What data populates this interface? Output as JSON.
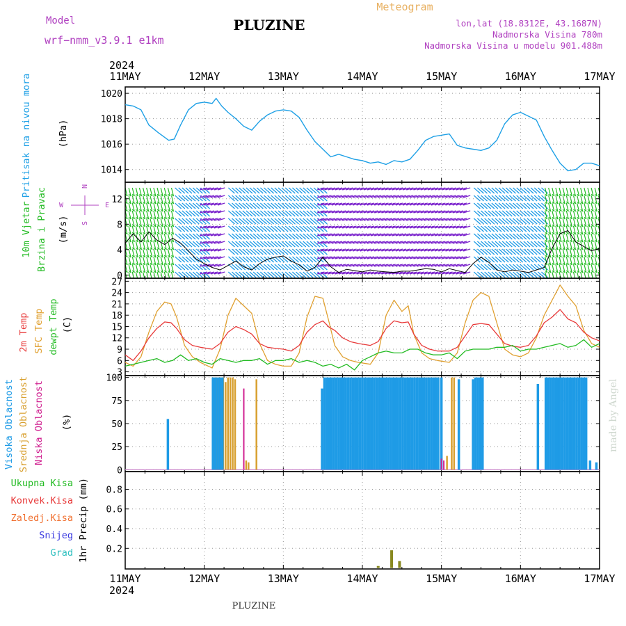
{
  "header": {
    "model_label": "Model",
    "model_name": "wrf−nmm_v3.9.1  e1km",
    "title": "PLUZINE",
    "meteogram_label": "Meteogram",
    "lonlat": "lon,lat (18.8312E, 43.1687N)",
    "altitude": "Nadmorska Visina 780m",
    "model_altitude": "Nadmorska Visina u modelu 901.488m",
    "credit": "made by Angel",
    "footer_title": "PLUZINE"
  },
  "colors": {
    "pressure": "#1ea0e6",
    "wind_speed": "#000000",
    "temp2m": "#e83b3b",
    "sfc_temp": "#e0a030",
    "dewpoint": "#22bb22",
    "high_cloud": "#1e9be6",
    "mid_cloud": "#d8a030",
    "low_cloud": "#d02090",
    "total_precip": "#22bb22",
    "convective_precip": "#e83b3b",
    "freezing_precip": "#f07030",
    "snow": "#3a3ae0",
    "hail": "#30c0c0",
    "model_label": "#b040c0",
    "meteogram_label": "#e8b060",
    "info_text": "#b040c0",
    "wind_barbs": [
      "#22bb22",
      "#1e9be6",
      "#7a22cc",
      "#e0c020"
    ]
  },
  "time_axis": {
    "year": "2024",
    "day_labels": [
      "11MAY",
      "12MAY",
      "13MAY",
      "14MAY",
      "15MAY",
      "16MAY",
      "17MAY"
    ],
    "start_day": 11,
    "end_day": 17
  },
  "chart_data": [
    {
      "type": "line",
      "panel": "pressure",
      "ylabel_1": "Pritisak na nivou mora",
      "ylabel_2": "(hPa)",
      "ylim": [
        1013,
        1020.5
      ],
      "yticks": [
        1014,
        1016,
        1018,
        1020
      ],
      "grid": true,
      "series": [
        {
          "values_x": [
            11.0,
            11.1,
            11.2,
            11.3,
            11.42,
            11.55,
            11.62,
            11.7,
            11.8,
            11.9,
            12.0,
            12.1,
            12.15,
            12.22,
            12.3,
            12.4,
            12.5,
            12.6,
            12.7,
            12.8,
            12.9,
            13.0,
            13.1,
            13.2,
            13.3,
            13.4,
            13.5,
            13.6,
            13.7,
            13.8,
            13.9,
            14.0,
            14.1,
            14.2,
            14.3,
            14.4,
            14.5,
            14.6,
            14.7,
            14.8,
            14.9,
            15.0,
            15.1,
            15.2,
            15.3,
            15.4,
            15.5,
            15.6,
            15.7,
            15.8,
            15.9,
            16.0,
            16.1,
            16.2,
            16.3,
            16.4,
            16.5,
            16.6,
            16.7,
            16.8,
            16.9,
            17.0
          ],
          "values": [
            1019.1,
            1019.0,
            1018.7,
            1017.5,
            1016.9,
            1016.3,
            1016.4,
            1017.5,
            1018.7,
            1019.2,
            1019.3,
            1019.2,
            1019.6,
            1019.0,
            1018.5,
            1018.0,
            1017.4,
            1017.1,
            1017.8,
            1018.3,
            1018.6,
            1018.7,
            1018.6,
            1018.1,
            1017.1,
            1016.2,
            1015.6,
            1015.0,
            1015.2,
            1015.0,
            1014.8,
            1014.7,
            1014.5,
            1014.6,
            1014.4,
            1014.7,
            1014.6,
            1014.8,
            1015.5,
            1016.3,
            1016.6,
            1016.7,
            1016.8,
            1015.9,
            1015.7,
            1015.6,
            1015.5,
            1015.7,
            1016.3,
            1017.6,
            1018.3,
            1018.5,
            1018.2,
            1017.9,
            1016.6,
            1015.5,
            1014.5,
            1013.9,
            1014.0,
            1014.5,
            1014.5,
            1014.3
          ]
        }
      ]
    },
    {
      "type": "line",
      "panel": "wind",
      "ylabel_1": "10m Vjetar",
      "ylabel_2": "Brzina i Pravac",
      "ylabel_3": "(m/s)",
      "ylim": [
        -0.5,
        14.6
      ],
      "yticks": [
        0,
        4,
        8,
        12
      ],
      "grid": true,
      "compass_n": "N",
      "compass_w": "W",
      "compass_e": "E",
      "compass_s": "S",
      "series": [
        {
          "name": "wind speed",
          "values_x": [
            11.0,
            11.1,
            11.2,
            11.3,
            11.4,
            11.5,
            11.6,
            11.7,
            11.8,
            11.9,
            12.0,
            12.1,
            12.2,
            12.3,
            12.4,
            12.5,
            12.6,
            12.7,
            12.8,
            12.9,
            13.0,
            13.1,
            13.2,
            13.3,
            13.4,
            13.5,
            13.6,
            13.7,
            13.8,
            13.9,
            14.0,
            14.1,
            14.2,
            14.3,
            14.4,
            14.5,
            14.6,
            14.7,
            14.8,
            14.9,
            15.0,
            15.1,
            15.2,
            15.3,
            15.4,
            15.5,
            15.6,
            15.7,
            15.8,
            15.9,
            16.0,
            16.1,
            16.2,
            16.3,
            16.4,
            16.5,
            16.6,
            16.7,
            16.8,
            16.9,
            17.0
          ],
          "values": [
            5.0,
            6.5,
            5.2,
            6.8,
            5.5,
            4.8,
            5.8,
            5.0,
            3.8,
            2.5,
            1.8,
            1.2,
            0.8,
            1.5,
            2.2,
            1.3,
            0.8,
            1.8,
            2.5,
            2.8,
            3.0,
            2.2,
            1.6,
            0.6,
            1.2,
            2.8,
            1.3,
            0.4,
            0.9,
            0.7,
            0.5,
            0.8,
            0.6,
            0.5,
            0.4,
            0.6,
            0.6,
            0.8,
            1.0,
            0.9,
            0.5,
            1.0,
            0.7,
            0.4,
            1.8,
            2.8,
            2.0,
            0.8,
            0.5,
            0.8,
            0.6,
            0.4,
            0.8,
            1.2,
            4.2,
            6.5,
            7.0,
            5.2,
            4.5,
            3.8,
            4.2
          ]
        }
      ]
    },
    {
      "type": "line",
      "panel": "temperature",
      "ylabel_1": "2m Temp",
      "ylabel_2": "SFC Temp",
      "ylabel_3": "dewpt Temp",
      "ylabel_4": "(C)",
      "ylim": [
        2,
        27.8
      ],
      "yticks": [
        3,
        6,
        9,
        12,
        15,
        18,
        21,
        24,
        27
      ],
      "grid": true,
      "series": [
        {
          "name": "2m Temp",
          "values_x": [
            11.0,
            11.1,
            11.2,
            11.3,
            11.4,
            11.5,
            11.58,
            11.65,
            11.75,
            11.85,
            11.95,
            12.1,
            12.2,
            12.3,
            12.4,
            12.5,
            12.6,
            12.7,
            12.8,
            12.9,
            13.0,
            13.1,
            13.2,
            13.3,
            13.4,
            13.5,
            13.58,
            13.65,
            13.75,
            13.85,
            13.95,
            14.1,
            14.2,
            14.3,
            14.4,
            14.5,
            14.58,
            14.65,
            14.75,
            14.85,
            14.95,
            15.1,
            15.2,
            15.3,
            15.4,
            15.5,
            15.6,
            15.7,
            15.8,
            15.9,
            16.0,
            16.1,
            16.2,
            16.3,
            16.4,
            16.5,
            16.6,
            16.7,
            16.8,
            16.9,
            17.0
          ],
          "values": [
            7.5,
            6.0,
            8.5,
            12.0,
            14.5,
            16.2,
            16.0,
            14.5,
            11.5,
            10.0,
            9.5,
            9.0,
            10.5,
            13.5,
            15.0,
            14.2,
            13.0,
            10.5,
            9.5,
            9.2,
            9.0,
            8.5,
            10.0,
            13.5,
            15.5,
            16.5,
            14.8,
            14.0,
            12.0,
            11.0,
            10.5,
            10.0,
            11.0,
            14.5,
            16.5,
            16.0,
            16.2,
            13.0,
            10.0,
            9.0,
            8.5,
            8.5,
            9.5,
            12.5,
            15.5,
            15.8,
            15.5,
            13.0,
            10.5,
            9.8,
            9.5,
            10.0,
            12.5,
            16.0,
            17.5,
            19.5,
            17.0,
            16.0,
            13.5,
            12.0,
            11.2
          ]
        },
        {
          "name": "SFC Temp",
          "values_x": [
            11.0,
            11.1,
            11.2,
            11.3,
            11.4,
            11.5,
            11.58,
            11.65,
            11.75,
            11.85,
            11.95,
            12.1,
            12.2,
            12.3,
            12.4,
            12.5,
            12.6,
            12.7,
            12.8,
            12.9,
            13.0,
            13.1,
            13.2,
            13.3,
            13.4,
            13.5,
            13.58,
            13.65,
            13.75,
            13.85,
            13.95,
            14.1,
            14.2,
            14.3,
            14.4,
            14.5,
            14.58,
            14.65,
            14.75,
            14.85,
            14.95,
            15.1,
            15.2,
            15.3,
            15.4,
            15.5,
            15.6,
            15.7,
            15.8,
            15.9,
            16.0,
            16.1,
            16.2,
            16.3,
            16.4,
            16.5,
            16.6,
            16.7,
            16.8,
            16.9,
            17.0
          ],
          "values": [
            5.5,
            4.5,
            7.0,
            13.5,
            19.0,
            21.5,
            21.0,
            17.5,
            10.0,
            7.0,
            5.5,
            4.0,
            9.0,
            18.0,
            22.5,
            20.5,
            18.5,
            10.5,
            6.0,
            5.0,
            4.5,
            4.5,
            8.0,
            17.5,
            23.0,
            22.5,
            16.0,
            10.0,
            7.0,
            6.0,
            5.5,
            5.0,
            8.0,
            18.0,
            22.0,
            19.0,
            20.5,
            13.0,
            8.0,
            6.5,
            6.0,
            5.5,
            8.0,
            16.0,
            22.0,
            24.0,
            23.0,
            16.0,
            9.0,
            7.5,
            7.0,
            8.0,
            12.0,
            18.0,
            22.0,
            26.0,
            23.0,
            20.5,
            14.0,
            10.5,
            9.5
          ]
        },
        {
          "name": "dewpt Temp",
          "values_x": [
            11.0,
            11.1,
            11.2,
            11.3,
            11.4,
            11.5,
            11.6,
            11.7,
            11.8,
            11.9,
            12.0,
            12.1,
            12.2,
            12.3,
            12.4,
            12.5,
            12.6,
            12.7,
            12.8,
            12.9,
            13.0,
            13.1,
            13.2,
            13.3,
            13.4,
            13.5,
            13.6,
            13.7,
            13.8,
            13.9,
            14.0,
            14.1,
            14.2,
            14.3,
            14.4,
            14.5,
            14.6,
            14.7,
            14.8,
            14.9,
            15.0,
            15.1,
            15.2,
            15.3,
            15.4,
            15.5,
            15.6,
            15.7,
            15.8,
            15.9,
            16.0,
            16.1,
            16.2,
            16.3,
            16.4,
            16.5,
            16.6,
            16.7,
            16.8,
            16.9,
            17.0
          ],
          "values": [
            4.5,
            5.0,
            5.5,
            6.0,
            6.5,
            5.5,
            6.0,
            7.5,
            6.0,
            6.5,
            5.5,
            5.0,
            6.5,
            6.0,
            5.5,
            6.0,
            6.0,
            6.5,
            5.0,
            6.0,
            6.0,
            6.5,
            5.5,
            6.0,
            5.5,
            4.5,
            5.0,
            4.0,
            5.0,
            3.5,
            6.0,
            7.0,
            8.0,
            8.5,
            8.0,
            8.0,
            9.0,
            9.0,
            8.0,
            7.5,
            7.5,
            8.0,
            6.5,
            8.5,
            9.0,
            9.0,
            9.0,
            9.5,
            9.5,
            10.0,
            8.5,
            9.0,
            9.0,
            9.5,
            10.0,
            10.5,
            9.5,
            10.0,
            11.5,
            9.5,
            10.5
          ]
        }
      ]
    },
    {
      "type": "bar",
      "panel": "cloudiness",
      "ylabel_1": "Visoka Oblacnost",
      "ylabel_2": "Srednja Oblacnost",
      "ylabel_3": "Niska Oblacnost",
      "ylabel_4": "(%)",
      "ylim": [
        -2,
        102
      ],
      "yticks": [
        0,
        25,
        50,
        75,
        100
      ],
      "grid": true,
      "series": [
        {
          "name": "Visoka Oblacnost",
          "x": [
            11.54,
            12.11,
            12.14,
            12.17,
            12.2,
            12.23,
            13.49,
            13.52,
            13.55,
            13.58,
            13.61,
            13.64,
            13.67,
            13.7,
            13.73,
            13.76,
            13.79,
            13.82,
            13.85,
            13.88,
            13.91,
            13.94,
            13.97,
            14.0,
            14.03,
            14.06,
            14.09,
            14.12,
            14.15,
            14.18,
            14.21,
            14.24,
            14.27,
            14.3,
            14.33,
            14.36,
            14.39,
            14.42,
            14.45,
            14.48,
            14.51,
            14.54,
            14.57,
            14.6,
            14.63,
            14.66,
            14.69,
            14.72,
            14.75,
            14.78,
            14.81,
            14.84,
            14.87,
            14.9,
            14.93,
            14.96,
            15.0,
            15.22,
            15.4,
            15.43,
            15.46,
            15.49,
            15.52,
            16.22,
            16.32,
            16.35,
            16.38,
            16.41,
            16.44,
            16.47,
            16.5,
            16.53,
            16.56,
            16.59,
            16.62,
            16.65,
            16.68,
            16.71,
            16.74,
            16.77,
            16.8,
            16.83,
            16.88,
            16.96
          ],
          "values": [
            55,
            100,
            100,
            100,
            100,
            100,
            88,
            100,
            100,
            100,
            100,
            100,
            100,
            100,
            100,
            100,
            100,
            100,
            100,
            100,
            100,
            100,
            100,
            100,
            100,
            100,
            100,
            100,
            100,
            100,
            100,
            100,
            100,
            100,
            100,
            100,
            100,
            100,
            100,
            100,
            100,
            100,
            100,
            100,
            100,
            100,
            100,
            100,
            100,
            100,
            100,
            100,
            100,
            100,
            100,
            100,
            100,
            98,
            98,
            100,
            100,
            100,
            100,
            93,
            100,
            100,
            100,
            100,
            100,
            100,
            100,
            100,
            100,
            100,
            100,
            100,
            100,
            100,
            100,
            100,
            100,
            100,
            10,
            8
          ]
        },
        {
          "name": "Srednja Oblacnost",
          "x": [
            12.12,
            12.15,
            12.18,
            12.21,
            12.24,
            12.27,
            12.3,
            12.33,
            12.36,
            12.39,
            12.53,
            12.56,
            12.66,
            14.63,
            14.66,
            14.69,
            14.72,
            14.75,
            14.78,
            14.81,
            14.84,
            14.87,
            14.9,
            14.93,
            14.96,
            15.07,
            15.13,
            15.16
          ],
          "values": [
            100,
            100,
            100,
            100,
            100,
            95,
            100,
            100,
            100,
            98,
            10,
            8,
            98,
            100,
            100,
            100,
            100,
            100,
            100,
            100,
            100,
            100,
            100,
            100,
            100,
            15,
            100,
            100
          ]
        },
        {
          "name": "Niska Oblacnost",
          "x": [
            12.5,
            15.0,
            15.03
          ],
          "values": [
            88,
            12,
            10
          ]
        }
      ]
    },
    {
      "type": "bar",
      "panel": "precipitation",
      "ylabel_1": "1hr Precip (mm)",
      "legend": [
        "Ukupna  Kisa",
        "Konvek.Kisa",
        "Zaledj.Kisa",
        "Snijeg",
        "Grad"
      ],
      "ylim": [
        -0.01,
        0.98
      ],
      "yticks": [
        0.2,
        0.4,
        0.6,
        0.8
      ],
      "grid": true,
      "series": [
        {
          "name": "Ukupna Kisa",
          "x": [
            14.2,
            14.37,
            14.47
          ],
          "values": [
            0.02,
            0.18,
            0.07
          ]
        }
      ]
    }
  ]
}
